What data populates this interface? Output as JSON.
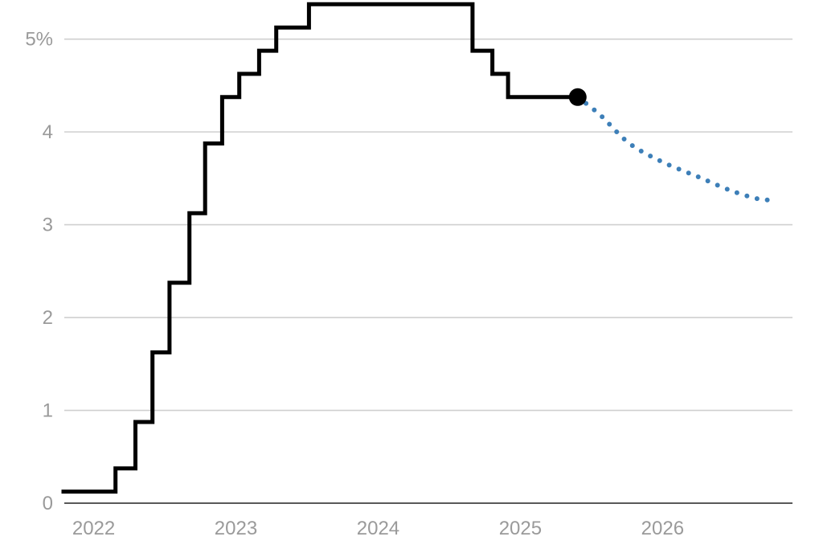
{
  "chart_data": {
    "type": "line",
    "title": "",
    "xlabel": "",
    "ylabel": "",
    "xlim": [
      2021.85,
      2026.97
    ],
    "ylim": [
      0,
      5.3
    ],
    "grid": true,
    "x_tick_labels": [
      "2022",
      "2023",
      "2024",
      "2025",
      "2026"
    ],
    "x_tick_values": [
      2022,
      2023,
      2024,
      2025,
      2026
    ],
    "y_tick_labels": [
      "0",
      "1",
      "2",
      "3",
      "4",
      "5%"
    ],
    "y_tick_values": [
      0,
      1,
      2,
      3,
      4,
      5
    ],
    "colors": {
      "actual": "#000000",
      "projection": "#3d7fb8",
      "grid": "#cfcfcf",
      "axis": "#222222",
      "tick_text": "#9a9a9a"
    },
    "series": [
      {
        "style": "solid-step",
        "points": [
          [
            2021.83,
            0.125
          ],
          [
            2022.21,
            0.125
          ],
          [
            2022.21,
            0.375
          ],
          [
            2022.35,
            0.375
          ],
          [
            2022.35,
            0.875
          ],
          [
            2022.47,
            0.875
          ],
          [
            2022.47,
            1.625
          ],
          [
            2022.59,
            1.625
          ],
          [
            2022.59,
            2.375
          ],
          [
            2022.73,
            2.375
          ],
          [
            2022.73,
            3.125
          ],
          [
            2022.84,
            3.125
          ],
          [
            2022.84,
            3.875
          ],
          [
            2022.96,
            3.875
          ],
          [
            2022.96,
            4.375
          ],
          [
            2023.08,
            4.375
          ],
          [
            2023.08,
            4.625
          ],
          [
            2023.22,
            4.625
          ],
          [
            2023.22,
            4.875
          ],
          [
            2023.34,
            4.875
          ],
          [
            2023.34,
            5.125
          ],
          [
            2023.57,
            5.125
          ],
          [
            2023.57,
            5.375
          ],
          [
            2024.72,
            5.375
          ],
          [
            2024.72,
            4.875
          ],
          [
            2024.86,
            4.875
          ],
          [
            2024.86,
            4.625
          ],
          [
            2024.97,
            4.625
          ],
          [
            2024.97,
            4.375
          ],
          [
            2025.46,
            4.375
          ]
        ],
        "endpoint_marker": true
      },
      {
        "style": "dotted",
        "points": [
          [
            2025.46,
            4.375
          ],
          [
            2025.62,
            4.18
          ],
          [
            2025.82,
            3.88
          ],
          [
            2026.05,
            3.68
          ],
          [
            2026.3,
            3.52
          ],
          [
            2026.55,
            3.36
          ],
          [
            2026.75,
            3.27
          ],
          [
            2026.8,
            3.27
          ]
        ]
      }
    ]
  }
}
